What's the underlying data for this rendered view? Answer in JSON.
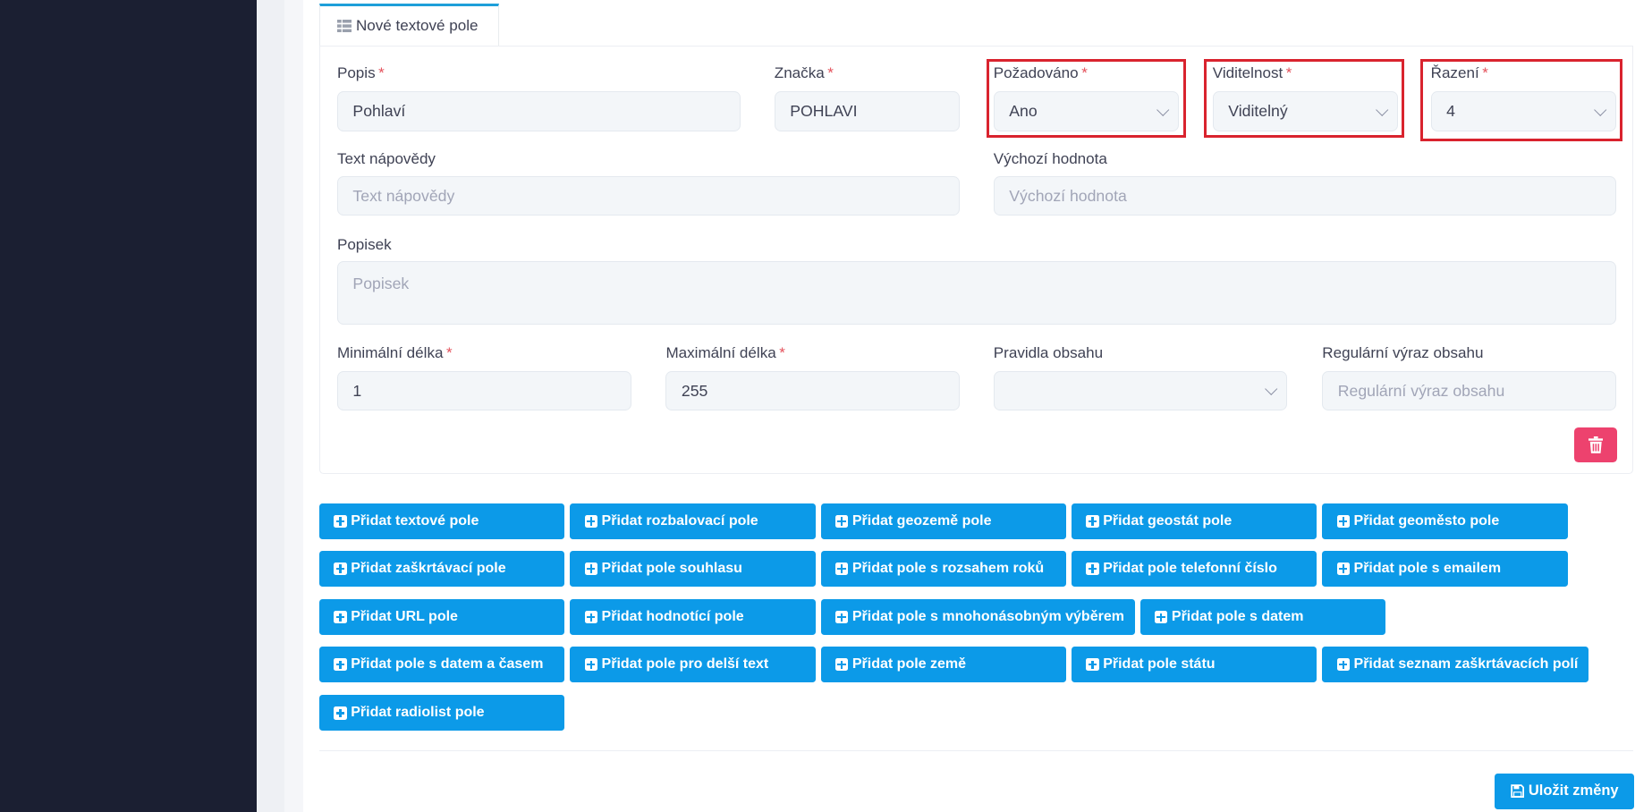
{
  "tab": {
    "label": "Nové textové pole",
    "icon": "list-icon"
  },
  "fields": {
    "popis": {
      "label": "Popis",
      "value": "Pohlaví",
      "required": "*"
    },
    "znacka": {
      "label": "Značka",
      "value": "POHLAVI",
      "required": "*"
    },
    "pozadovano": {
      "label": "Požadováno",
      "value": "Ano",
      "required": "*"
    },
    "viditelnost": {
      "label": "Viditelnost",
      "value": "Viditelný",
      "required": "*"
    },
    "razeni": {
      "label": "Řazení",
      "value": "4",
      "required": "*"
    },
    "text_napovedy": {
      "label": "Text nápovědy",
      "placeholder": "Text nápovědy"
    },
    "vychozi_hodnota": {
      "label": "Výchozí hodnota",
      "placeholder": "Výchozí hodnota"
    },
    "popisek": {
      "label": "Popisek",
      "placeholder": "Popisek"
    },
    "min_delka": {
      "label": "Minimální délka",
      "value": "1",
      "required": "*"
    },
    "max_delka": {
      "label": "Maximální délka",
      "value": "255",
      "required": "*"
    },
    "pravidla_obsahu": {
      "label": "Pravidla obsahu",
      "value": ""
    },
    "regex_obsahu": {
      "label": "Regulární výraz obsahu",
      "placeholder": "Regulární výraz obsahu"
    }
  },
  "add_buttons": [
    [
      "Přidat textové pole",
      "Přidat rozbalovací pole",
      "Přidat geozemě pole",
      "Přidat geostát pole",
      "Přidat geoměsto pole"
    ],
    [
      "Přidat zaškrtávací pole",
      "Přidat pole souhlasu",
      "Přidat pole s rozsahem roků",
      "Přidat pole telefonní číslo",
      "Přidat pole s emailem"
    ],
    [
      "Přidat URL pole",
      "Přidat hodnotící pole",
      "Přidat pole s mnohonásobným výběrem",
      "Přidat pole s datem"
    ],
    [
      "Přidat pole s datem a časem",
      "Přidat pole pro delší text",
      "Přidat pole země",
      "Přidat pole státu",
      "Přidat seznam zaškrtávacích polí"
    ],
    [
      "Přidat radiolist pole"
    ]
  ],
  "save_label": "Uložit změny",
  "colors": {
    "primary": "#0c9ae8",
    "danger": "#ed426e",
    "highlight": "#d9232e",
    "sidebar": "#1b1f32"
  }
}
